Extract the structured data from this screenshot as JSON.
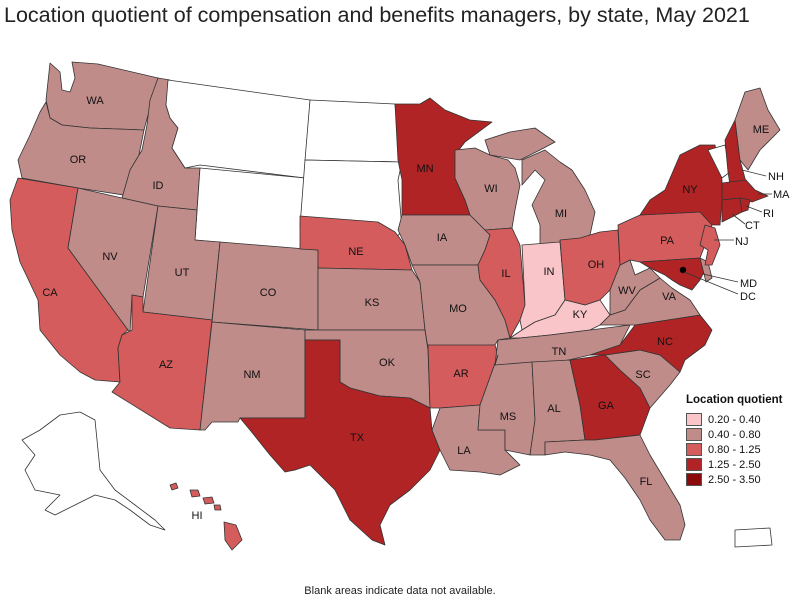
{
  "title": "Location quotient of compensation and benefits managers, by state, May 2021",
  "footnote": "Blank areas indicate data not available.",
  "colors": {
    "na": "#ffffff",
    "q1": "#f9c5c9",
    "q2": "#bf8c8a",
    "q3": "#d45c5c",
    "q4": "#b02426",
    "q5": "#8b0b0d"
  },
  "legend": {
    "title": "Location quotient",
    "items": [
      {
        "label": "0.20 - 0.40",
        "cls": "q1"
      },
      {
        "label": "0.40 - 0.80",
        "cls": "q2"
      },
      {
        "label": "0.80 - 1.25",
        "cls": "q3"
      },
      {
        "label": "1.25 - 2.50",
        "cls": "q4"
      },
      {
        "label": "2.50 - 3.50",
        "cls": "q5"
      }
    ]
  },
  "states": {
    "WA": {
      "label": "WA",
      "cls": "q2"
    },
    "OR": {
      "label": "OR",
      "cls": "q2"
    },
    "CA": {
      "label": "CA",
      "cls": "q3"
    },
    "ID": {
      "label": "ID",
      "cls": "q2"
    },
    "NV": {
      "label": "NV",
      "cls": "q2"
    },
    "MT": {
      "label": "",
      "cls": "na"
    },
    "WY": {
      "label": "",
      "cls": "na"
    },
    "UT": {
      "label": "UT",
      "cls": "q2"
    },
    "AZ": {
      "label": "AZ",
      "cls": "q3"
    },
    "CO": {
      "label": "CO",
      "cls": "q2"
    },
    "NM": {
      "label": "NM",
      "cls": "q2"
    },
    "ND": {
      "label": "",
      "cls": "na"
    },
    "SD": {
      "label": "",
      "cls": "na"
    },
    "NE": {
      "label": "NE",
      "cls": "q3"
    },
    "KS": {
      "label": "KS",
      "cls": "q2"
    },
    "OK": {
      "label": "OK",
      "cls": "q2"
    },
    "TX": {
      "label": "TX",
      "cls": "q4"
    },
    "MN": {
      "label": "MN",
      "cls": "q4"
    },
    "IA": {
      "label": "IA",
      "cls": "q2"
    },
    "MO": {
      "label": "MO",
      "cls": "q2"
    },
    "AR": {
      "label": "AR",
      "cls": "q3"
    },
    "LA": {
      "label": "LA",
      "cls": "q2"
    },
    "WI": {
      "label": "WI",
      "cls": "q2"
    },
    "IL": {
      "label": "IL",
      "cls": "q3"
    },
    "MI": {
      "label": "MI",
      "cls": "q2"
    },
    "IN": {
      "label": "IN",
      "cls": "q1"
    },
    "OH": {
      "label": "OH",
      "cls": "q3"
    },
    "KY": {
      "label": "KY",
      "cls": "q1"
    },
    "TN": {
      "label": "TN",
      "cls": "q2"
    },
    "MS": {
      "label": "MS",
      "cls": "q2"
    },
    "AL": {
      "label": "AL",
      "cls": "q2"
    },
    "GA": {
      "label": "GA",
      "cls": "q4"
    },
    "FL": {
      "label": "FL",
      "cls": "q2"
    },
    "SC": {
      "label": "SC",
      "cls": "q2"
    },
    "NC": {
      "label": "NC",
      "cls": "q4"
    },
    "VA": {
      "label": "VA",
      "cls": "q2"
    },
    "WV": {
      "label": "WV",
      "cls": "q2"
    },
    "PA": {
      "label": "PA",
      "cls": "q3"
    },
    "NY": {
      "label": "NY",
      "cls": "q4"
    },
    "NJ": {
      "label": "NJ",
      "cls": "q3"
    },
    "DE": {
      "label": "",
      "cls": "q2"
    },
    "MD": {
      "label": "MD",
      "cls": "q4"
    },
    "DC": {
      "label": "DC",
      "cls": "q5"
    },
    "VT": {
      "label": "",
      "cls": "na"
    },
    "NH": {
      "label": "NH",
      "cls": "q4"
    },
    "ME": {
      "label": "ME",
      "cls": "q2"
    },
    "MA": {
      "label": "MA",
      "cls": "q4"
    },
    "RI": {
      "label": "RI",
      "cls": "q4"
    },
    "CT": {
      "label": "CT",
      "cls": "q4"
    },
    "AK": {
      "label": "",
      "cls": "na"
    },
    "HI": {
      "label": "HI",
      "cls": "q3"
    },
    "PR": {
      "label": "",
      "cls": "na"
    }
  }
}
